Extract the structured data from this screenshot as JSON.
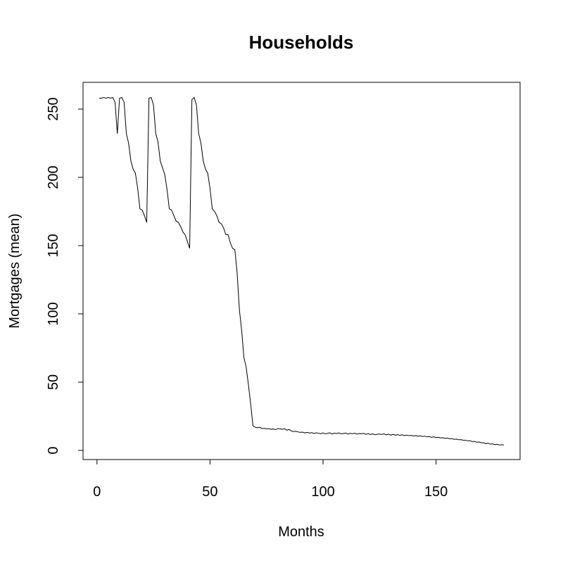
{
  "chart_data": {
    "type": "line",
    "title": "Households",
    "x_label": "Months",
    "y_label": "Mortgages (mean)",
    "x": [
      1,
      2,
      3,
      4,
      5,
      6,
      7,
      8,
      9,
      10,
      11,
      12,
      13,
      14,
      15,
      16,
      17,
      18,
      19,
      20,
      21,
      22,
      23,
      24,
      25,
      26,
      27,
      28,
      29,
      30,
      31,
      32,
      33,
      34,
      35,
      36,
      37,
      38,
      39,
      40,
      41,
      42,
      43,
      44,
      45,
      46,
      47,
      48,
      49,
      50,
      51,
      52,
      53,
      54,
      55,
      56,
      57,
      58,
      59,
      60,
      61,
      62,
      63,
      64,
      65,
      66,
      67,
      68,
      69,
      70,
      71,
      72,
      73,
      74,
      75,
      76,
      77,
      78,
      79,
      80,
      81,
      82,
      83,
      84,
      85,
      86,
      87,
      88,
      89,
      90,
      91,
      92,
      93,
      94,
      95,
      96,
      97,
      98,
      99,
      100,
      101,
      102,
      103,
      104,
      105,
      106,
      107,
      108,
      109,
      110,
      111,
      112,
      113,
      114,
      115,
      116,
      117,
      118,
      119,
      120,
      121,
      122,
      123,
      124,
      125,
      126,
      127,
      128,
      129,
      130,
      131,
      132,
      133,
      134,
      135,
      136,
      137,
      138,
      139,
      140,
      141,
      142,
      143,
      144,
      145,
      146,
      147,
      148,
      149,
      150,
      151,
      152,
      153,
      154,
      155,
      156,
      157,
      158,
      159,
      160,
      161,
      162,
      163,
      164,
      165,
      166,
      167,
      168,
      169,
      170,
      171,
      172,
      173,
      174,
      175,
      176,
      177,
      178,
      179,
      180
    ],
    "series": [
      {
        "color": "#000000",
        "values": [
          258,
          258,
          258.5,
          258,
          258.5,
          258,
          258.5,
          255,
          232,
          258,
          258.5,
          255,
          232,
          225,
          212,
          206,
          203,
          192,
          177,
          176,
          172,
          167,
          258,
          258.5,
          253,
          232,
          226,
          212,
          207,
          202,
          191,
          177,
          176,
          172,
          168,
          167,
          164,
          160,
          158,
          153,
          148,
          257,
          258.5,
          253,
          232,
          225,
          212,
          206,
          203,
          192,
          177,
          175,
          172,
          167,
          166,
          163,
          158,
          158,
          152,
          148,
          147,
          130,
          103,
          88,
          68,
          61,
          48,
          34,
          18,
          17,
          16.5,
          17,
          16,
          16.2,
          15.8,
          16,
          15.5,
          15.7,
          15.2,
          16,
          15.8,
          15.5,
          15.9,
          14.8,
          15.3,
          14.2,
          13.8,
          14,
          13.5,
          13.2,
          13.4,
          12.8,
          13.2,
          12.7,
          13,
          12.4,
          12.9,
          12.6,
          12.2,
          12.8,
          12.1,
          12.5,
          12.9,
          12,
          12.6,
          12.3,
          12.8,
          12.1,
          12.4,
          12.7,
          12,
          12.5,
          12.2,
          12.6,
          11.9,
          12.4,
          12.1,
          12.5,
          11.8,
          12.3,
          11.6,
          12.1,
          11.5,
          11.8,
          12,
          11.7,
          12.1,
          11.4,
          11.9,
          11.2,
          11.8,
          11.1,
          11.6,
          11,
          11.4,
          10.9,
          11.2,
          10.8,
          11,
          10.6,
          10.9,
          10.4,
          10.6,
          10.2,
          10.4,
          9.9,
          10.1,
          9.6,
          9.9,
          9.4,
          9.6,
          9.2,
          9.3,
          8.8,
          9,
          8.5,
          8.6,
          8.1,
          8.3,
          7.8,
          7.9,
          7.4,
          7.5,
          7,
          7,
          6.5,
          6.6,
          6,
          6.2,
          5.6,
          5.6,
          5,
          5.3,
          4.6,
          4.8,
          4.2,
          4.5,
          4,
          4.2,
          4
        ]
      }
    ],
    "xlim": [
      -6.16,
      187.16
    ],
    "ylim": [
      -6.7,
      269.6
    ],
    "xticks": [
      0,
      50,
      100,
      150
    ],
    "yticks": [
      0,
      50,
      100,
      150,
      200,
      250
    ]
  }
}
